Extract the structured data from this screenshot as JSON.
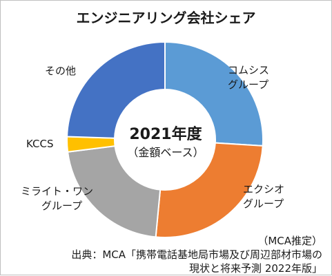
{
  "chart_data": {
    "type": "pie",
    "style": "donut",
    "title": "エンジニアリング会社シェア",
    "center_text": {
      "main": "2021年度",
      "sub": "（金額ベース）"
    },
    "slices": [
      {
        "label_lines": [
          "コムシス",
          "グループ"
        ],
        "value": 26.0,
        "color": "#5b9bd5"
      },
      {
        "label_lines": [
          "エクシオ",
          "グループ"
        ],
        "value": 25.5,
        "color": "#ed7d31"
      },
      {
        "label_lines": [
          "ミライト・ワン",
          "グループ"
        ],
        "value": 21.5,
        "color": "#a5a5a5"
      },
      {
        "label_lines": [
          "KCCS"
        ],
        "value": 2.5,
        "color": "#ffc000"
      },
      {
        "label_lines": [
          "その他"
        ],
        "value": 24.5,
        "color": "#4472c4"
      }
    ],
    "note": "（MCA推定）",
    "source_lines": [
      "出典：MCA「携帯電話基地局市場及び周辺部材市場の",
      "現状と将来予測 2022年版」"
    ]
  }
}
